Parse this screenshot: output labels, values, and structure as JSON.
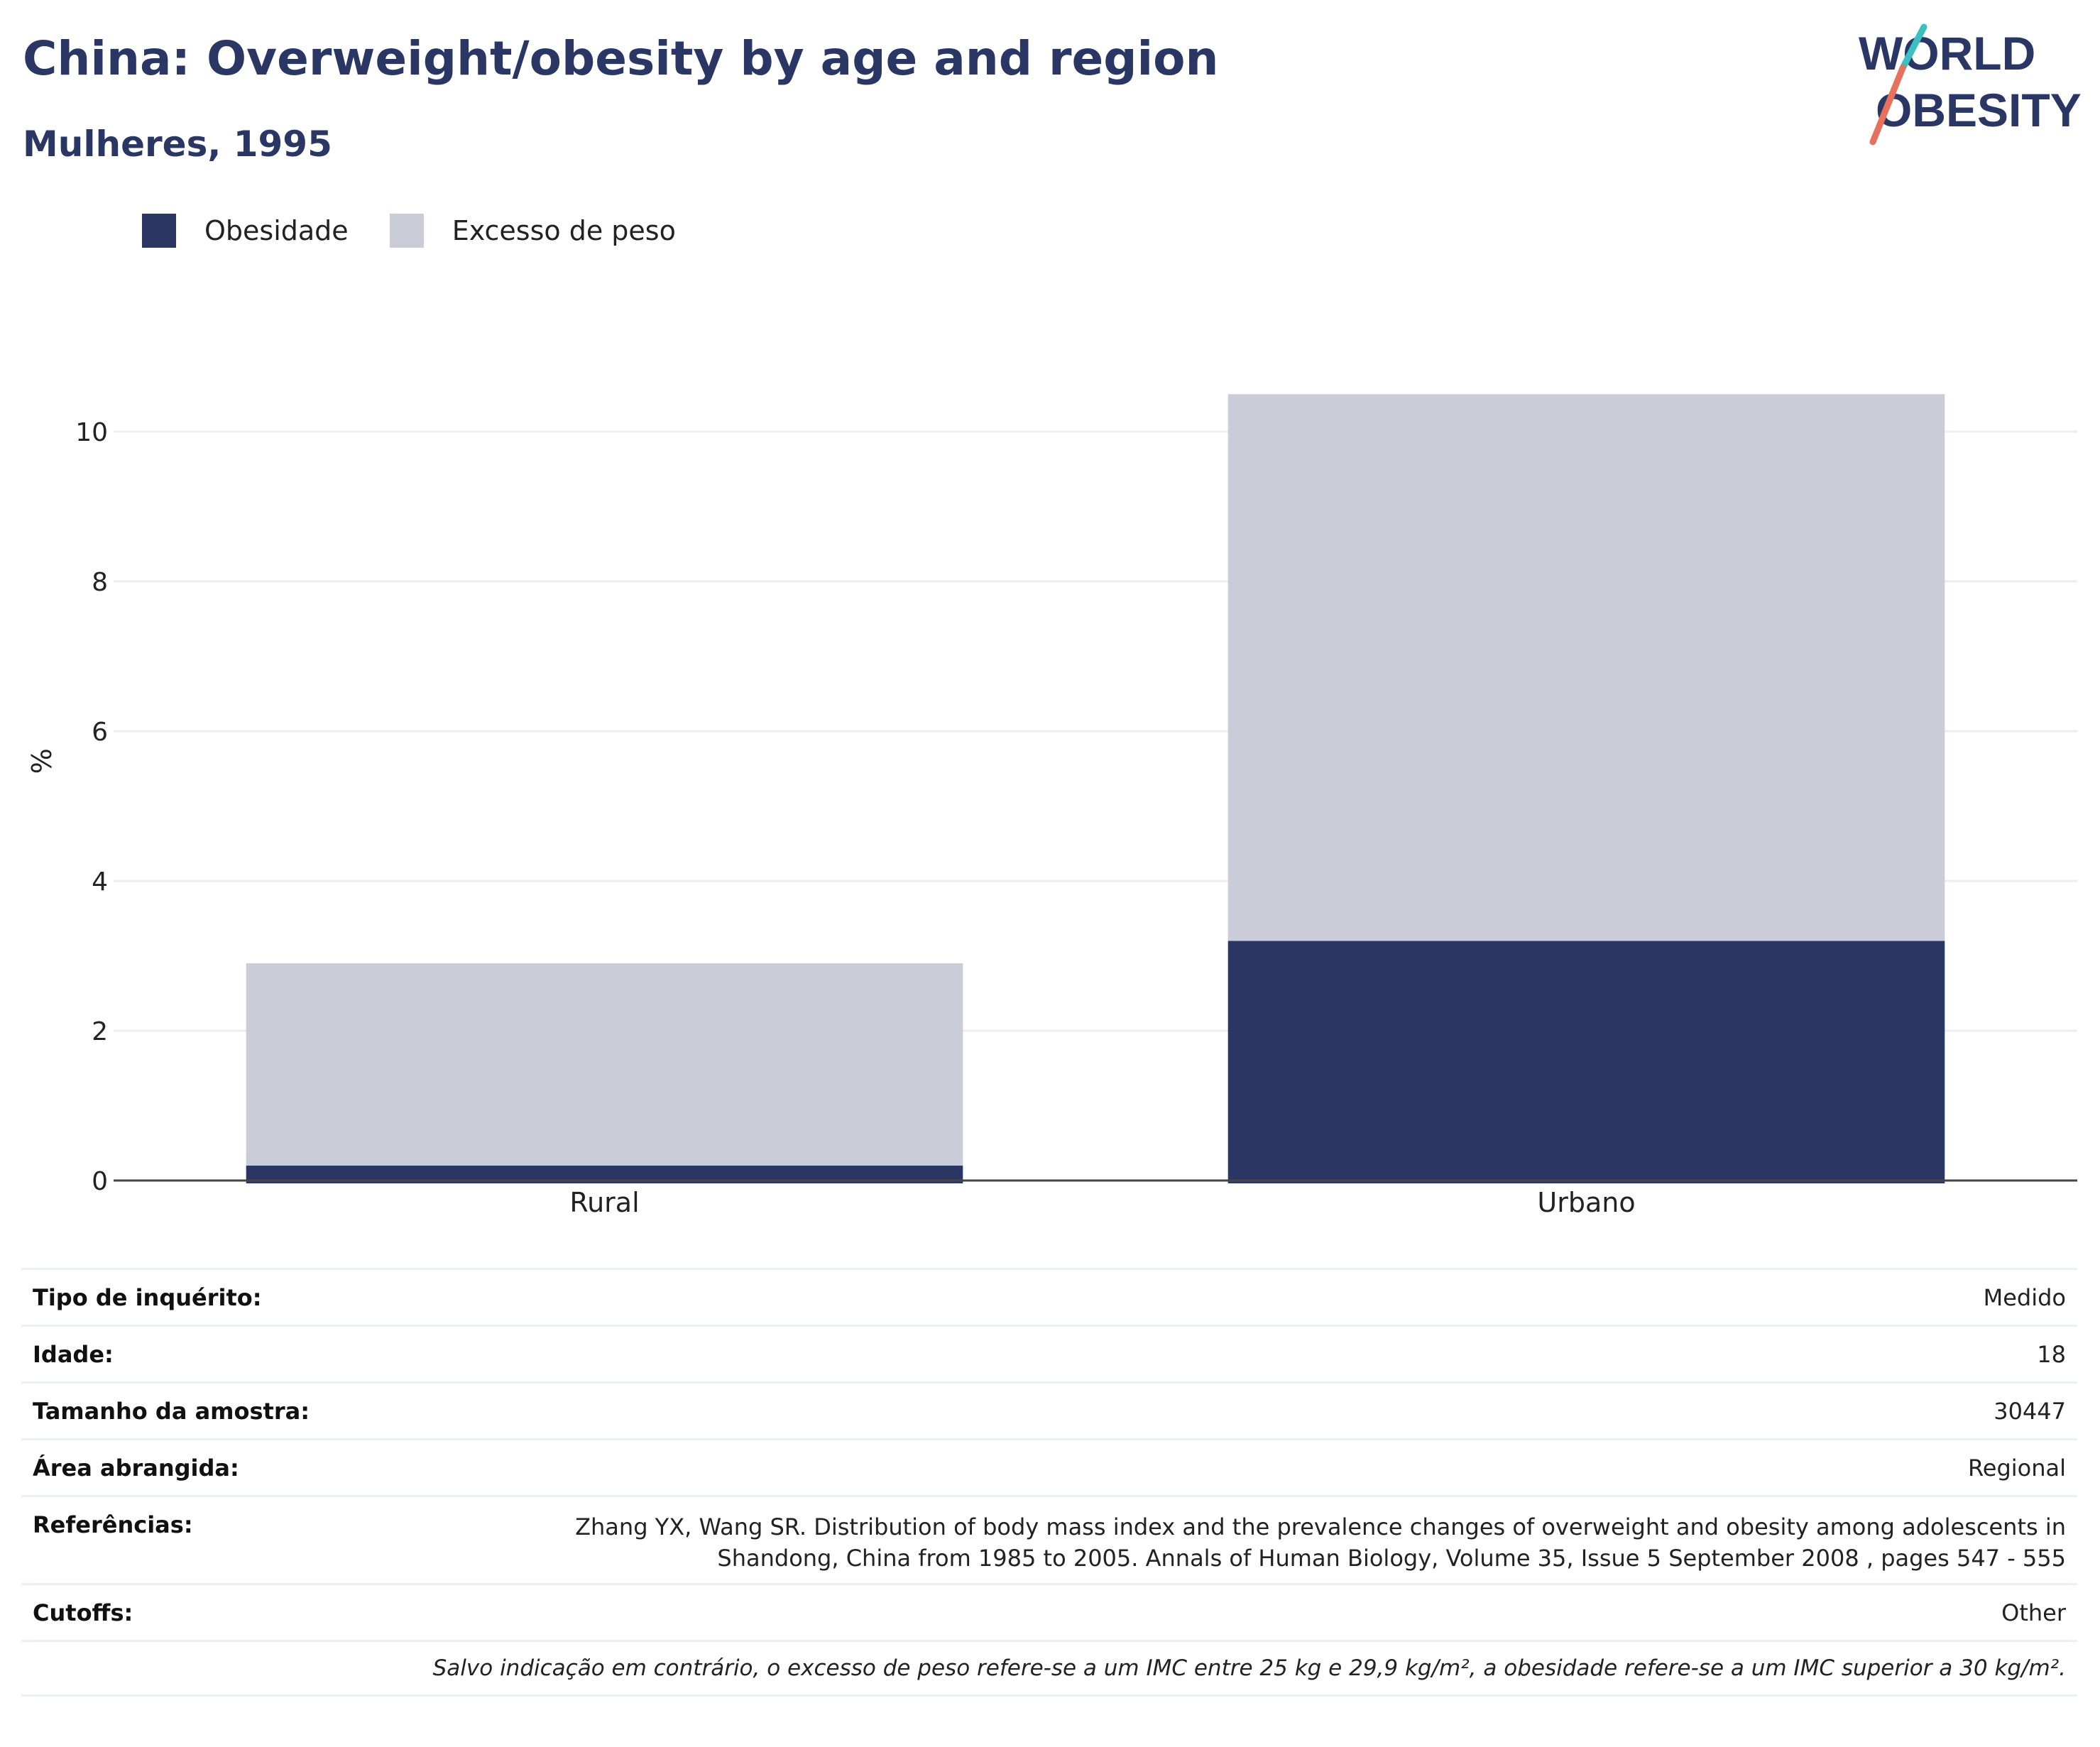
{
  "header": {
    "title": "China: Overweight/obesity by age and region",
    "subtitle": "Mulheres, 1995"
  },
  "logo": {
    "line1": "WORLD",
    "line2": "OBESITY",
    "colors": {
      "text": "#2a3664",
      "slash_top": "#3bbfbf",
      "slash_bottom": "#e8705f"
    }
  },
  "colors": {
    "obesity": "#2a3664",
    "overweight": "#cacdd8",
    "grid": "#ebedf2",
    "axis": "#444444"
  },
  "legend": {
    "items": [
      {
        "label": "Obesidade",
        "color": "#2a3664"
      },
      {
        "label": "Excesso de peso",
        "color": "#cacdd8"
      }
    ]
  },
  "chart_data": {
    "type": "bar",
    "stacked": true,
    "categories": [
      "Rural",
      "Urbano"
    ],
    "series": [
      {
        "name": "Obesidade",
        "values": [
          0.2,
          3.2
        ]
      },
      {
        "name": "Excesso de peso",
        "values": [
          2.7,
          7.3
        ]
      }
    ],
    "ylabel": "%",
    "ylim": [
      0,
      11
    ],
    "yticks": [
      0,
      2,
      4,
      6,
      8,
      10
    ],
    "grid": true,
    "legend_position": "top-left"
  },
  "info": {
    "rows": [
      {
        "label": "Tipo de inquérito:",
        "value": "Medido"
      },
      {
        "label": "Idade:",
        "value": "18"
      },
      {
        "label": "Tamanho da amostra:",
        "value": "30447"
      },
      {
        "label": "Área abrangida:",
        "value": "Regional"
      },
      {
        "label": "Referências:",
        "value_line1": "Zhang YX, Wang SR. Distribution of body mass index and the prevalence changes of overweight and obesity among adolescents in",
        "value_line2": "Shandong, China from 1985 to 2005. Annals of Human Biology, Volume 35, Issue 5 September 2008 , pages 547 - 555"
      },
      {
        "label": "Cutoffs:",
        "value": "Other"
      }
    ],
    "note": "Salvo indicação em contrário, o excesso de peso refere-se a um IMC entre 25 kg e 29,9 kg/m², a obesidade refere-se a um IMC superior a 30 kg/m²."
  }
}
